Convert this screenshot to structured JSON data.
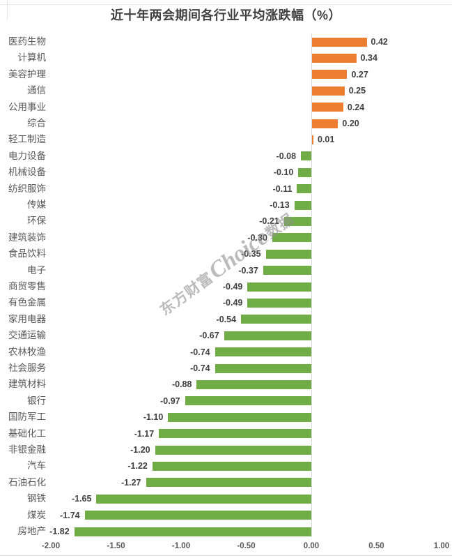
{
  "chart": {
    "title": "近十年两会期间各行业平均涨跌幅（%）"
  },
  "watermark": {
    "prefix": "东方财富",
    "brand": "Choice",
    "suffix": "数据"
  },
  "chart_data": {
    "type": "bar",
    "orientation": "horizontal",
    "title": "近十年两会期间各行业平均涨跌幅（%）",
    "categories": [
      "医药生物",
      "计算机",
      "美容护理",
      "通信",
      "公用事业",
      "综合",
      "轻工制造",
      "电力设备",
      "机械设备",
      "纺织服饰",
      "传媒",
      "环保",
      "建筑装饰",
      "食品饮料",
      "电子",
      "商贸零售",
      "有色金属",
      "家用电器",
      "交通运输",
      "农林牧渔",
      "社会服务",
      "建筑材料",
      "银行",
      "国防军工",
      "基础化工",
      "非银金融",
      "汽车",
      "石油石化",
      "钢铁",
      "煤炭",
      "房地产"
    ],
    "values": [
      0.42,
      0.34,
      0.27,
      0.25,
      0.24,
      0.2,
      0.01,
      -0.08,
      -0.1,
      -0.11,
      -0.13,
      -0.21,
      -0.3,
      -0.35,
      -0.37,
      -0.49,
      -0.49,
      -0.54,
      -0.67,
      -0.74,
      -0.74,
      -0.88,
      -0.97,
      -1.1,
      -1.17,
      -1.2,
      -1.22,
      -1.27,
      -1.65,
      -1.74,
      -1.82
    ],
    "x_ticks": [
      "-2.00",
      "-1.50",
      "-1.00",
      "-0.50",
      "0.00",
      "0.50",
      "1.00"
    ],
    "xlim": [
      -2.0,
      1.0
    ],
    "grid": false,
    "legend": "none",
    "value_label_decimals": 2,
    "colors": {
      "positive": "#ED7D31",
      "negative": "#70AD47",
      "axis_line": "#d9d9d9",
      "title_text": "#404040",
      "label_text": "#595959",
      "value_text": "#404040"
    }
  }
}
